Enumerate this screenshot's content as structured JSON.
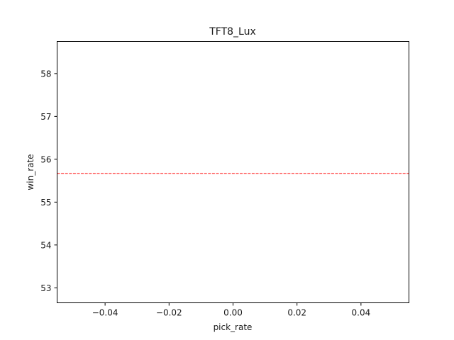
{
  "chart_data": {
    "type": "line",
    "title": "TFT8_Lux",
    "xlabel": "pick_rate",
    "ylabel": "win_rate",
    "xlim": [
      -0.055,
      0.055
    ],
    "ylim": [
      52.65,
      58.75
    ],
    "x_ticks": [
      -0.04,
      -0.02,
      0.0,
      0.02,
      0.04
    ],
    "x_tick_labels": [
      "−0.04",
      "−0.02",
      "0.00",
      "0.02",
      "0.04"
    ],
    "y_ticks": [
      53,
      54,
      55,
      56,
      57,
      58
    ],
    "y_tick_labels": [
      "53",
      "54",
      "55",
      "56",
      "57",
      "58"
    ],
    "grid": false,
    "series": [],
    "reference_lines": [
      {
        "orientation": "horizontal",
        "y": 55.67,
        "style": "dashed",
        "color": "#ff0000"
      }
    ]
  },
  "colors": {
    "axes": "#000000",
    "text": "#1a1a1a",
    "reference_line": "#ff0000",
    "background": "#ffffff"
  }
}
